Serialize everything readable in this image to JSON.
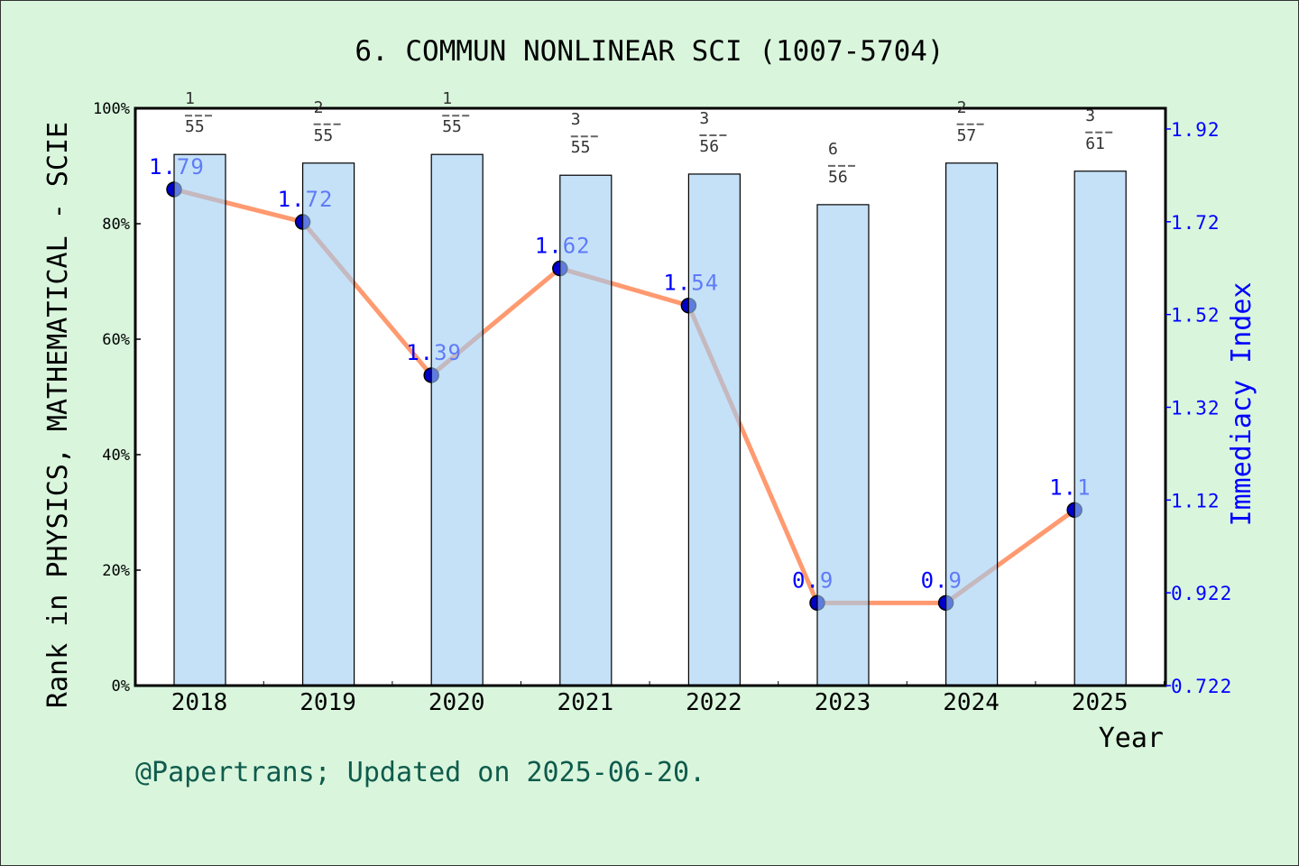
{
  "chart_data": {
    "type": "bar+line",
    "title": "6. COMMUN NONLINEAR SCI (1007-5704)",
    "xlabel": "Year",
    "ylabel_left": "Rank in PHYSICS, MATHEMATICAL - SCIE",
    "ylabel_right": "Immediacy Index",
    "categories": [
      "2018",
      "2019",
      "2020",
      "2021",
      "2022",
      "2023",
      "2024",
      "2025"
    ],
    "bar_series": {
      "values_percent": [
        92.0,
        90.5,
        92.0,
        88.4,
        88.6,
        83.3,
        90.5,
        89.1
      ],
      "rank_labels": [
        {
          "rank": "1",
          "total": "55"
        },
        {
          "rank": "2",
          "total": "55"
        },
        {
          "rank": "1",
          "total": "55"
        },
        {
          "rank": "3",
          "total": "55"
        },
        {
          "rank": "3",
          "total": "56"
        },
        {
          "rank": "6",
          "total": "56"
        },
        {
          "rank": "2",
          "total": "57"
        },
        {
          "rank": "3",
          "total": "61"
        }
      ],
      "color": "#c5e0f7"
    },
    "line_series": {
      "values": [
        1.79,
        1.72,
        1.39,
        1.62,
        1.54,
        0.9,
        0.9,
        1.1
      ],
      "labels": [
        "1.79",
        "1.72",
        "1.39",
        "1.62",
        "1.54",
        "0.9",
        "0.9",
        "1.1"
      ],
      "line_color": "#ff9a70",
      "marker_color": "#0000c8"
    },
    "ylim_left": [
      0,
      100
    ],
    "yticks_left": [
      "0%",
      "20%",
      "40%",
      "60%",
      "80%",
      "100%"
    ],
    "ylim_right": [
      0.722,
      1.92
    ],
    "yticks_right": [
      "0.722",
      "0.922",
      "1.12",
      "1.32",
      "1.52",
      "1.72",
      "1.92"
    ],
    "grid": false,
    "footer": "@Papertrans; Updated on 2025-06-20."
  }
}
